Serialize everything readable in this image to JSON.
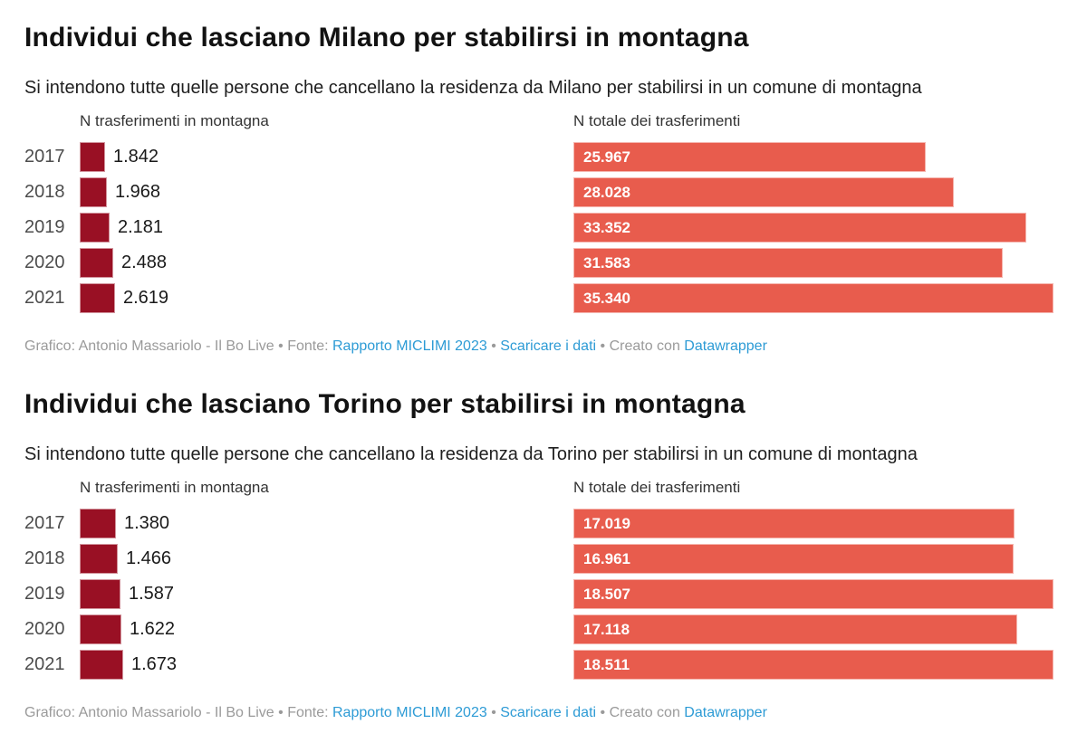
{
  "page": {
    "background": "#ffffff"
  },
  "colors": {
    "montagna_bar": "#991024",
    "totale_bar": "#e85c4d",
    "link_blue": "#2d9bd5",
    "footer_gray": "#9a9a9a"
  },
  "chart_data": [
    {
      "type": "bar",
      "orientation": "horizontal",
      "title": "Individui che lasciano Milano per stabilirsi in montagna",
      "subtitle": "Si intendono tutte quelle persone che cancellano la residenza da Milano per stabilirsi in un comune di montagna",
      "categories": [
        "2017",
        "2018",
        "2019",
        "2020",
        "2021"
      ],
      "series": [
        {
          "name": "N trasferimenti in montagna",
          "values": [
            1842,
            1968,
            2181,
            2488,
            2619
          ],
          "labels": [
            "1.842",
            "1.968",
            "2.181",
            "2.488",
            "2.619"
          ],
          "color": "#991024",
          "label_position": "outside"
        },
        {
          "name": "N totale dei trasferimenti",
          "values": [
            25967,
            28028,
            33352,
            31583,
            35340
          ],
          "labels": [
            "25.967",
            "28.028",
            "33.352",
            "31.583",
            "35.340"
          ],
          "color": "#e85c4d",
          "label_position": "inside"
        }
      ],
      "xlim": [
        0,
        35340
      ],
      "grid": false,
      "legend_position": "column-headers"
    },
    {
      "type": "bar",
      "orientation": "horizontal",
      "title": "Individui che lasciano Torino per stabilirsi in montagna",
      "subtitle": "Si intendono tutte quelle persone che cancellano la residenza da Torino per stabilirsi in un comune di montagna",
      "categories": [
        "2017",
        "2018",
        "2019",
        "2020",
        "2021"
      ],
      "series": [
        {
          "name": "N trasferimenti in montagna",
          "values": [
            1380,
            1466,
            1587,
            1622,
            1673
          ],
          "labels": [
            "1.380",
            "1.466",
            "1.587",
            "1.622",
            "1.673"
          ],
          "color": "#991024",
          "label_position": "outside"
        },
        {
          "name": "N totale dei trasferimenti",
          "values": [
            17019,
            16961,
            18507,
            17118,
            18511
          ],
          "labels": [
            "17.019",
            "16.961",
            "18.507",
            "17.118",
            "18.511"
          ],
          "color": "#e85c4d",
          "label_position": "inside"
        }
      ],
      "xlim": [
        0,
        18511
      ],
      "grid": false,
      "legend_position": "column-headers"
    }
  ],
  "footer": {
    "credit": "Grafico: Antonio Massariolo - Il Bo Live",
    "separator": " • ",
    "source_label": "Fonte: ",
    "source_link": "Rapporto MICLIMI 2023",
    "download_link": "Scaricare i dati",
    "created_with": "Creato con ",
    "tool_link": "Datawrapper"
  }
}
